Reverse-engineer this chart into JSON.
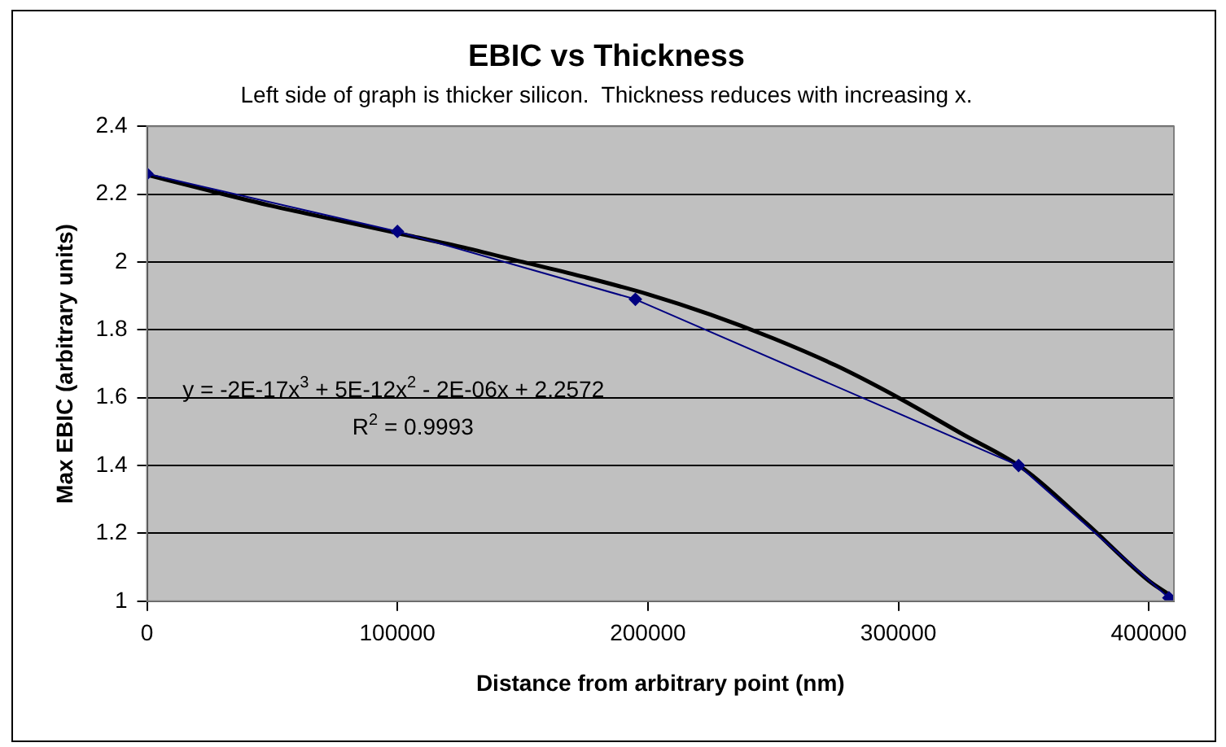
{
  "chart_data": {
    "type": "line",
    "title": "EBIC vs Thickness",
    "subtitle": "Left side of graph is thicker silicon.  Thickness reduces with increasing x.",
    "xlabel": "Distance from arbitrary point (nm)",
    "ylabel": "Max EBIC (arbitrary units)",
    "xlim": [
      0,
      410000
    ],
    "xticks": [
      0,
      100000,
      200000,
      300000,
      400000
    ],
    "ylim": [
      1,
      2.4
    ],
    "yticks": [
      1,
      1.2,
      1.4,
      1.6,
      1.8,
      2,
      2.2,
      2.4
    ],
    "grid": "y",
    "legend": false,
    "series": [
      {
        "type": "line",
        "color": "#000080",
        "marker": "diamond",
        "x": [
          0,
          100000,
          195000,
          348000,
          408000
        ],
        "values": [
          2.26,
          2.09,
          1.89,
          1.4,
          1.01
        ]
      },
      {
        "type": "line",
        "color": "#000000",
        "marker": "none",
        "x": [
          0,
          25000,
          50000,
          75000,
          100000,
          125000,
          150000,
          175000,
          200000,
          225000,
          250000,
          275000,
          300000,
          325000,
          350000,
          375000,
          400000,
          408000
        ],
        "values": [
          2.257,
          2.21,
          2.165,
          2.125,
          2.085,
          2.045,
          2.0,
          1.955,
          1.905,
          1.845,
          1.775,
          1.695,
          1.6,
          1.495,
          1.39,
          1.23,
          1.06,
          1.02
        ]
      }
    ],
    "annotations": [
      "y = -2E-17x$^{3}$ + 5E-12x$^{2}$ - 2E-06x + 2.2572",
      "R$^{2}$ = 0.9993"
    ]
  }
}
